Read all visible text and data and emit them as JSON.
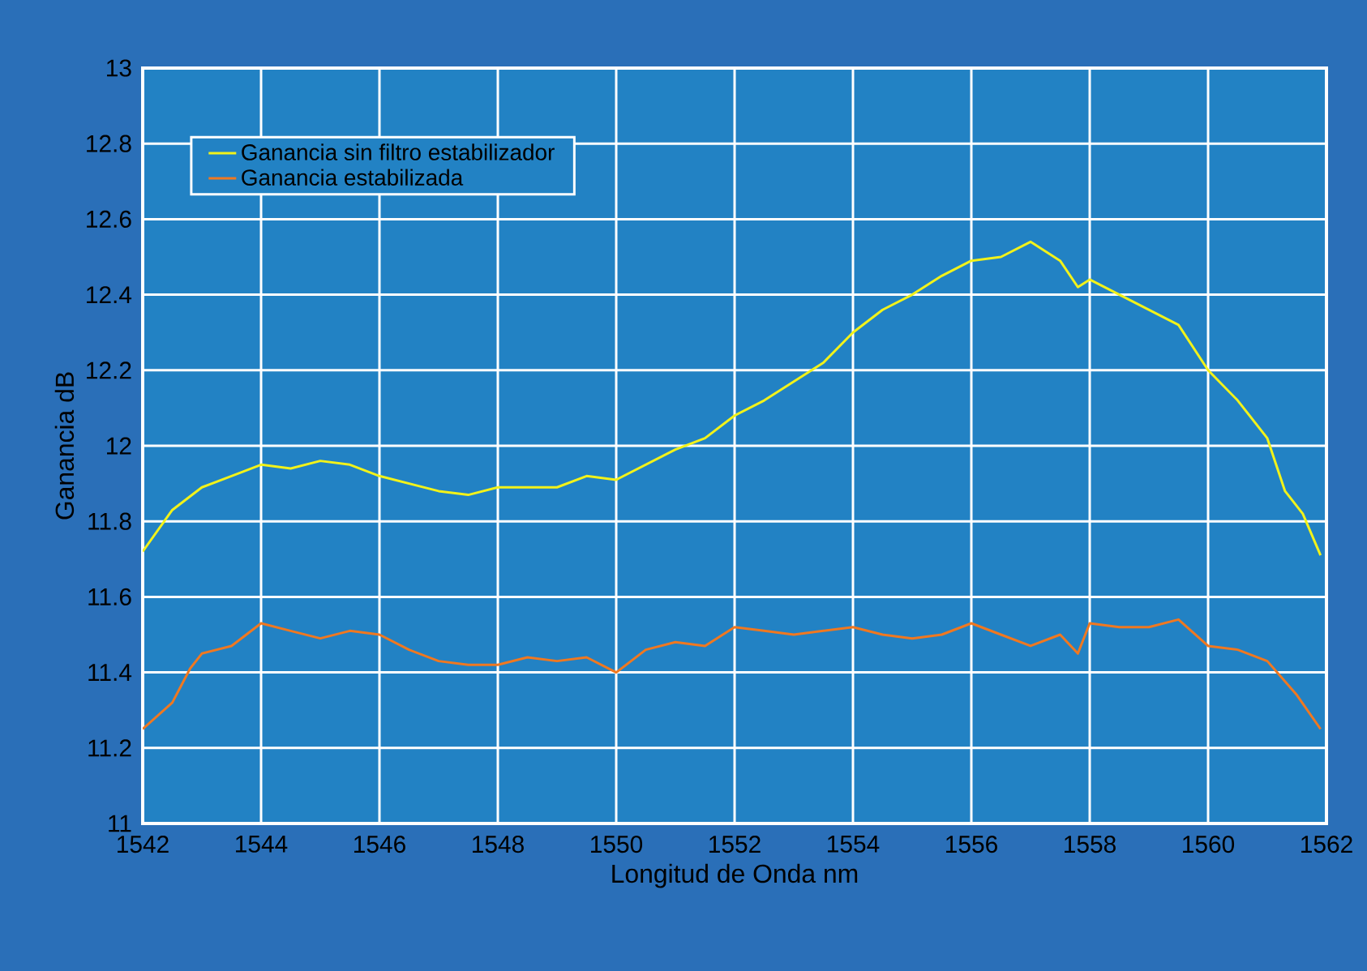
{
  "chart_data": {
    "type": "line",
    "xlabel": "Longitud de Onda nm",
    "ylabel": "Ganancia dB",
    "xlim": [
      1542,
      1562
    ],
    "ylim": [
      11,
      13
    ],
    "xticks": [
      1542,
      1544,
      1546,
      1548,
      1550,
      1552,
      1554,
      1556,
      1558,
      1560,
      1562
    ],
    "yticks": [
      11,
      11.2,
      11.4,
      11.6,
      11.8,
      12,
      12.2,
      12.4,
      12.6,
      12.8,
      13
    ],
    "grid": true,
    "legend": "top left",
    "line_style": "solid",
    "marker": "none",
    "series": [
      {
        "name": "Ganancia sin filtro estabilizador",
        "color": "#f2f21a",
        "x": [
          1542,
          1542.5,
          1543,
          1543.5,
          1544,
          1544.5,
          1545,
          1545.5,
          1546,
          1546.5,
          1547,
          1547.5,
          1548,
          1548.5,
          1549,
          1549.5,
          1550,
          1550.5,
          1551,
          1551.5,
          1552,
          1552.5,
          1553,
          1553.5,
          1554,
          1554.5,
          1555,
          1555.5,
          1556,
          1556.5,
          1557,
          1557.5,
          1557.8,
          1558,
          1558.5,
          1559,
          1559.5,
          1560,
          1560.5,
          1561,
          1561.3,
          1561.6,
          1561.9
        ],
        "values": [
          11.72,
          11.83,
          11.89,
          11.92,
          11.95,
          11.94,
          11.96,
          11.95,
          11.92,
          11.9,
          11.88,
          11.87,
          11.89,
          11.89,
          11.89,
          11.92,
          11.91,
          11.95,
          11.99,
          12.02,
          12.08,
          12.12,
          12.17,
          12.22,
          12.3,
          12.36,
          12.4,
          12.45,
          12.49,
          12.5,
          12.54,
          12.49,
          12.42,
          12.44,
          12.4,
          12.36,
          12.32,
          12.2,
          12.12,
          12.02,
          11.88,
          11.82,
          11.71
        ]
      },
      {
        "name": "Ganancia estabilizada",
        "color": "#f07820",
        "x": [
          1542,
          1542.5,
          1542.8,
          1543,
          1543.5,
          1544,
          1544.5,
          1545,
          1545.5,
          1546,
          1546.5,
          1547,
          1547.5,
          1548,
          1548.5,
          1549,
          1549.5,
          1550,
          1550.5,
          1551,
          1551.5,
          1552,
          1552.5,
          1553,
          1553.5,
          1554,
          1554.5,
          1555,
          1555.5,
          1556,
          1556.5,
          1557,
          1557.5,
          1557.8,
          1558,
          1558.5,
          1559,
          1559.5,
          1560,
          1560.5,
          1561,
          1561.5,
          1561.9
        ],
        "values": [
          11.25,
          11.32,
          11.41,
          11.45,
          11.47,
          11.53,
          11.51,
          11.49,
          11.51,
          11.5,
          11.46,
          11.43,
          11.42,
          11.42,
          11.44,
          11.43,
          11.44,
          11.4,
          11.46,
          11.48,
          11.47,
          11.52,
          11.51,
          11.5,
          11.51,
          11.52,
          11.5,
          11.49,
          11.5,
          11.53,
          11.5,
          11.47,
          11.5,
          11.45,
          11.53,
          11.52,
          11.52,
          11.54,
          11.47,
          11.46,
          11.43,
          11.34,
          11.25
        ]
      }
    ]
  }
}
